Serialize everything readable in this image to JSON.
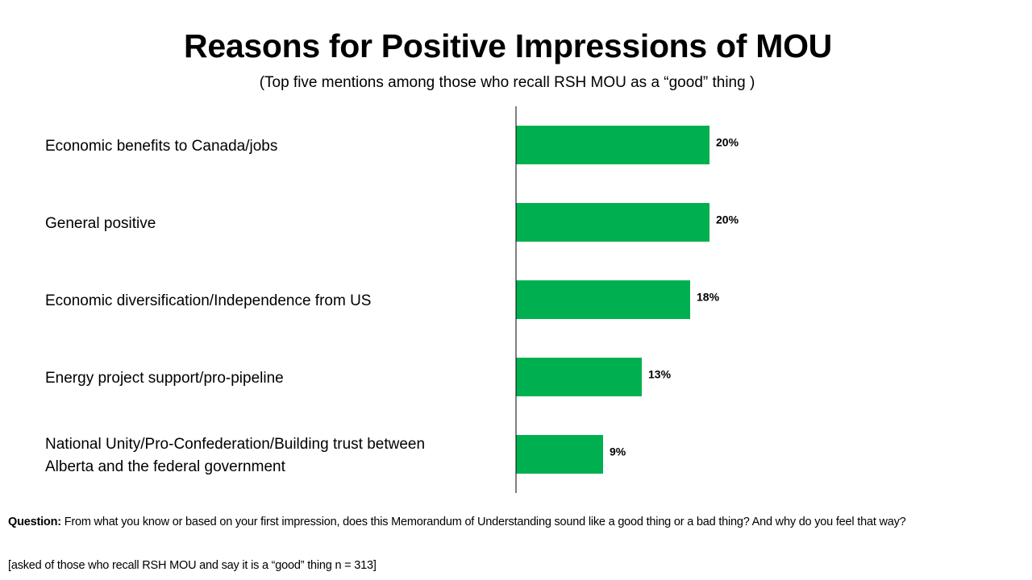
{
  "chart_data": {
    "type": "bar",
    "orientation": "horizontal",
    "title": "Reasons for Positive Impressions of MOU",
    "subtitle": "(Top five mentions among those who recall RSH MOU as a “good” thing )",
    "categories": [
      [
        "Economic benefits to Canada/jobs"
      ],
      [
        "General positive"
      ],
      [
        "Economic diversification/Independence from US"
      ],
      [
        "Energy project support/pro-pipeline"
      ],
      [
        "National Unity/Pro-Confederation/Building trust between",
        "Alberta and the federal government"
      ]
    ],
    "values": [
      20,
      20,
      18,
      13,
      9
    ],
    "value_labels": [
      "20%",
      "20%",
      "18%",
      "13%",
      "9%"
    ],
    "unit": "%",
    "xlim": [
      0,
      50
    ],
    "grid": false,
    "bar_color": "#00B050"
  },
  "footer": {
    "question_label": "Question:",
    "question_text": " From what you know or based on your first impression, does this Memorandum of Understanding sound like a good thing or a bad thing? And why do you feel that way?",
    "note": "[asked of those who recall RSH MOU and say it is a “good” thing n = 313]"
  }
}
